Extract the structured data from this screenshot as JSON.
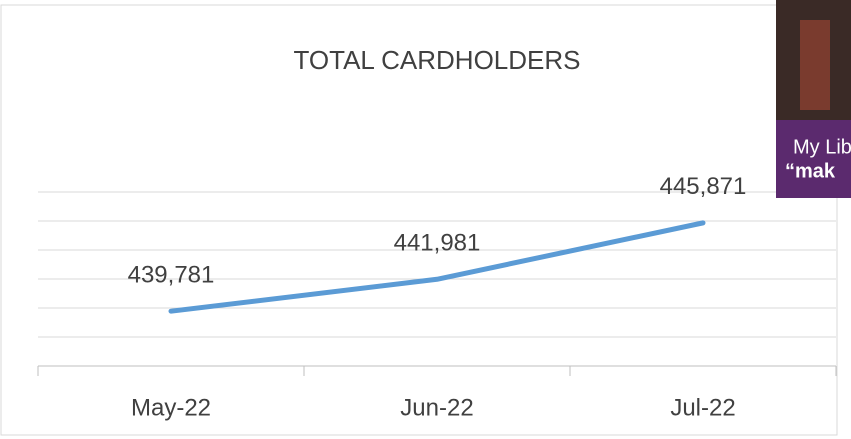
{
  "chart_data": {
    "type": "line",
    "title": "TOTAL CARDHOLDERS",
    "categories": [
      "May-22",
      "Jun-22",
      "Jul-22"
    ],
    "series": [
      {
        "color": "#5b9bd5",
        "values": [
          439781,
          441981,
          445871
        ],
        "value_labels": [
          "439,781",
          "441,981",
          "445,871"
        ]
      }
    ],
    "ylim": [
      436000,
      448000
    ],
    "yticks": [
      436000,
      438000,
      440000,
      442000,
      444000,
      446000,
      448000
    ],
    "grid": true,
    "overlay_text": [
      "My Lib",
      "“mak"
    ]
  }
}
